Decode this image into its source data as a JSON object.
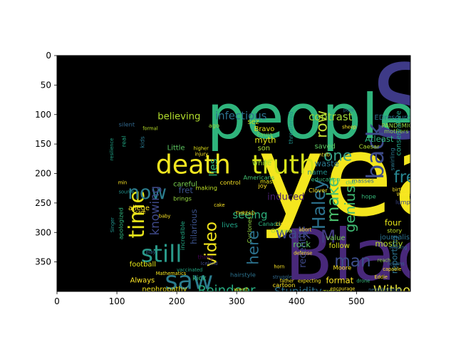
{
  "chart_data": {
    "type": "wordcloud",
    "title": "",
    "xlabel": "",
    "ylabel": "",
    "xlim": [
      0,
      590
    ],
    "ylim": [
      400,
      0
    ],
    "image_size": [
      590,
      400
    ],
    "xticks": [
      0,
      100,
      200,
      300,
      400,
      500
    ],
    "yticks": [
      0,
      50,
      100,
      150,
      200,
      250,
      300,
      350
    ],
    "background": "#000000",
    "colormap": "viridis",
    "words": [
      {
        "text": "year",
        "x": 335,
        "y": 270,
        "size": 190,
        "color": "#f4e61e",
        "rotate": 0
      },
      {
        "text": "Black",
        "x": 380,
        "y": 380,
        "size": 120,
        "color": "#48287a",
        "rotate": 0
      },
      {
        "text": "people",
        "x": 250,
        "y": 140,
        "size": 105,
        "color": "#2fb47c",
        "rotate": 0
      },
      {
        "text": "S",
        "x": 525,
        "y": 140,
        "size": 175,
        "color": "#3e3a87",
        "rotate": 0
      },
      {
        "text": "death",
        "x": 165,
        "y": 200,
        "size": 44,
        "color": "#f3e720",
        "rotate": 0
      },
      {
        "text": "truth",
        "x": 325,
        "y": 200,
        "size": 44,
        "color": "#d6e21a",
        "rotate": 0
      },
      {
        "text": "still",
        "x": 140,
        "y": 350,
        "size": 40,
        "color": "#2a9a8a",
        "rotate": 0
      },
      {
        "text": "saw",
        "x": 180,
        "y": 396,
        "size": 42,
        "color": "#2b7c8e",
        "rotate": 0
      },
      {
        "text": "time",
        "x": 145,
        "y": 310,
        "size": 36,
        "color": "#e7e419",
        "rotate": 270
      },
      {
        "text": "now",
        "x": 118,
        "y": 243,
        "size": 32,
        "color": "#2b7d8e",
        "rotate": 0
      },
      {
        "text": "back",
        "x": 545,
        "y": 210,
        "size": 40,
        "color": "#3d4b89",
        "rotate": 270
      },
      {
        "text": "one",
        "x": 445,
        "y": 178,
        "size": 26,
        "color": "#37a186",
        "rotate": 0
      },
      {
        "text": "free",
        "x": 562,
        "y": 215,
        "size": 28,
        "color": "#27858e",
        "rotate": 0
      },
      {
        "text": "row",
        "x": 450,
        "y": 140,
        "size": 26,
        "color": "#bfd932",
        "rotate": 270
      },
      {
        "text": "make",
        "x": 470,
        "y": 283,
        "size": 28,
        "color": "#4ac16d",
        "rotate": 270
      },
      {
        "text": "genius",
        "x": 497,
        "y": 300,
        "size": 24,
        "color": "#3fbc73",
        "rotate": 270
      },
      {
        "text": "Haley",
        "x": 447,
        "y": 295,
        "size": 30,
        "color": "#2c728e",
        "rotate": 270
      },
      {
        "text": "walk",
        "x": 365,
        "y": 310,
        "size": 26,
        "color": "#3f4789",
        "rotate": 0
      },
      {
        "text": "man",
        "x": 463,
        "y": 358,
        "size": 28,
        "color": "#3d4e8a",
        "rotate": 0
      },
      {
        "text": "M",
        "x": 440,
        "y": 317,
        "size": 30,
        "color": "#433d84",
        "rotate": 0
      },
      {
        "text": "video",
        "x": 266,
        "y": 358,
        "size": 28,
        "color": "#f2e51d",
        "rotate": 270
      },
      {
        "text": "Reindeer",
        "x": 235,
        "y": 406,
        "size": 22,
        "color": "#26ad81",
        "rotate": 0
      },
      {
        "text": "Without",
        "x": 528,
        "y": 406,
        "size": 22,
        "color": "#e1dd37",
        "rotate": 0
      },
      {
        "text": "Stupidity",
        "x": 363,
        "y": 406,
        "size": 18,
        "color": "#2c718e",
        "rotate": 0
      },
      {
        "text": "knowing",
        "x": 170,
        "y": 305,
        "size": 20,
        "color": "#3e4989",
        "rotate": 270
      },
      {
        "text": "seeing",
        "x": 293,
        "y": 276,
        "size": 18,
        "color": "#2db27d",
        "rotate": 0
      },
      {
        "text": "lies",
        "x": 267,
        "y": 205,
        "size": 18,
        "color": "#35b779",
        "rotate": 270
      },
      {
        "text": "infectious",
        "x": 264,
        "y": 108,
        "size": 18,
        "color": "#2c728e",
        "rotate": 0
      },
      {
        "text": "believing",
        "x": 168,
        "y": 108,
        "size": 16,
        "color": "#b2dd2d",
        "rotate": 0
      },
      {
        "text": "contrast",
        "x": 420,
        "y": 110,
        "size": 18,
        "color": "#a0da39",
        "rotate": 0
      },
      {
        "text": "induced",
        "x": 351,
        "y": 245,
        "size": 16,
        "color": "#481f70",
        "rotate": 0
      },
      {
        "text": "mass",
        "x": 339,
        "y": 217,
        "size": 10,
        "color": "#e5e419",
        "rotate": 0
      },
      {
        "text": "Americans",
        "x": 311,
        "y": 210,
        "size": 10,
        "color": "#44bf70",
        "rotate": 0
      },
      {
        "text": "waste",
        "x": 430,
        "y": 188,
        "size": 14,
        "color": "#2a788e",
        "rotate": 0
      },
      {
        "text": "name",
        "x": 418,
        "y": 202,
        "size": 12,
        "color": "#21918c",
        "rotate": 0
      },
      {
        "text": "education",
        "x": 424,
        "y": 213,
        "size": 10,
        "color": "#35b779",
        "rotate": 0
      },
      {
        "text": "saved",
        "x": 430,
        "y": 158,
        "size": 12,
        "color": "#5ec962",
        "rotate": 0
      },
      {
        "text": "threatened",
        "x": 394,
        "y": 150,
        "size": 10,
        "color": "#21918c",
        "rotate": 270
      },
      {
        "text": "Atleast",
        "x": 514,
        "y": 146,
        "size": 14,
        "color": "#2fb47c",
        "rotate": 0
      },
      {
        "text": "Caesar",
        "x": 504,
        "y": 158,
        "size": 10,
        "color": "#addc30",
        "rotate": 0
      },
      {
        "text": "EDresources",
        "x": 530,
        "y": 109,
        "size": 12,
        "color": "#2c728e",
        "rotate": 0
      },
      {
        "text": "PANDEMIC",
        "x": 542,
        "y": 122,
        "size": 10,
        "color": "#95d840",
        "rotate": 0
      },
      {
        "text": "mothers",
        "x": 546,
        "y": 132,
        "size": 10,
        "color": "#8bd646",
        "rotate": 0
      },
      {
        "text": "conservative",
        "x": 574,
        "y": 170,
        "size": 12,
        "color": "#20a386",
        "rotate": 270
      },
      {
        "text": "swirling",
        "x": 563,
        "y": 195,
        "size": 10,
        "color": "#2a788e",
        "rotate": 270
      },
      {
        "text": "myth",
        "x": 330,
        "y": 148,
        "size": 14,
        "color": "#e2e418",
        "rotate": 0
      },
      {
        "text": "son",
        "x": 335,
        "y": 161,
        "size": 12,
        "color": "#a5db36",
        "rotate": 0
      },
      {
        "text": "Bravo",
        "x": 329,
        "y": 128,
        "size": 12,
        "color": "#e5e419",
        "rotate": 0
      },
      {
        "text": "sez",
        "x": 318,
        "y": 116,
        "size": 12,
        "color": "#c2df23",
        "rotate": 0
      },
      {
        "text": "Fauja",
        "x": 334,
        "y": 137,
        "size": 10,
        "color": "#73d056",
        "rotate": 0
      },
      {
        "text": "white",
        "x": 326,
        "y": 186,
        "size": 12,
        "color": "#9bd93c",
        "rotate": 0
      },
      {
        "text": "fret",
        "x": 203,
        "y": 233,
        "size": 14,
        "color": "#3b528b",
        "rotate": 0
      },
      {
        "text": "careful",
        "x": 194,
        "y": 222,
        "size": 12,
        "color": "#7ad151",
        "rotate": 0
      },
      {
        "text": "allege",
        "x": 119,
        "y": 262,
        "size": 12,
        "color": "#fde725",
        "rotate": 0
      },
      {
        "text": "brings",
        "x": 194,
        "y": 246,
        "size": 10,
        "color": "#95d840",
        "rotate": 0
      },
      {
        "text": "making",
        "x": 231,
        "y": 228,
        "size": 10,
        "color": "#bddf26",
        "rotate": 0
      },
      {
        "text": "control",
        "x": 272,
        "y": 219,
        "size": 10,
        "color": "#fde725",
        "rotate": 0
      },
      {
        "text": "hilarious",
        "x": 233,
        "y": 320,
        "size": 14,
        "color": "#3b528b",
        "rotate": 270
      },
      {
        "text": "incredible",
        "x": 213,
        "y": 330,
        "size": 10,
        "color": "#22a884",
        "rotate": 270
      },
      {
        "text": "lives",
        "x": 275,
        "y": 291,
        "size": 12,
        "color": "#20a386",
        "rotate": 0
      },
      {
        "text": "Canada",
        "x": 336,
        "y": 289,
        "size": 10,
        "color": "#2db27d",
        "rotate": 0
      },
      {
        "text": "Ottawa",
        "x": 357,
        "y": 300,
        "size": 10,
        "color": "#a0da39",
        "rotate": 0
      },
      {
        "text": "circle",
        "x": 365,
        "y": 289,
        "size": 10,
        "color": "#fde725",
        "rotate": 0
      },
      {
        "text": "Cyclones",
        "x": 325,
        "y": 318,
        "size": 10,
        "color": "#95d840",
        "rotate": 270
      },
      {
        "text": "rock",
        "x": 394,
        "y": 325,
        "size": 14,
        "color": "#5ec962",
        "rotate": 0
      },
      {
        "text": "follow",
        "x": 454,
        "y": 326,
        "size": 12,
        "color": "#d8e219",
        "rotate": 0
      },
      {
        "text": "value",
        "x": 449,
        "y": 313,
        "size": 12,
        "color": "#7ad151",
        "rotate": 0
      },
      {
        "text": "mostly",
        "x": 531,
        "y": 324,
        "size": 14,
        "color": "#b8de29",
        "rotate": 0
      },
      {
        "text": "journalist",
        "x": 539,
        "y": 312,
        "size": 12,
        "color": "#2c728e",
        "rotate": 0
      },
      {
        "text": "four",
        "x": 547,
        "y": 288,
        "size": 14,
        "color": "#e5e419",
        "rotate": 0
      },
      {
        "text": "story",
        "x": 551,
        "y": 300,
        "size": 10,
        "color": "#bddf26",
        "rotate": 0
      },
      {
        "text": "hope",
        "x": 508,
        "y": 242,
        "size": 10,
        "color": "#35b779",
        "rotate": 0
      },
      {
        "text": "Moore",
        "x": 461,
        "y": 363,
        "size": 10,
        "color": "#fde725",
        "rotate": 0
      },
      {
        "text": "format",
        "x": 449,
        "y": 386,
        "size": 14,
        "color": "#fde725",
        "rotate": 0
      },
      {
        "text": "recently",
        "x": 415,
        "y": 360,
        "size": 16,
        "color": "#3e4989",
        "rotate": 270
      },
      {
        "text": "reporting",
        "x": 568,
        "y": 370,
        "size": 14,
        "color": "#2c728e",
        "rotate": 270
      },
      {
        "text": "here",
        "x": 336,
        "y": 355,
        "size": 26,
        "color": "#2c728e",
        "rotate": 270
      },
      {
        "text": "Always",
        "x": 122,
        "y": 385,
        "size": 12,
        "color": "#fde725",
        "rotate": 0
      },
      {
        "text": "nephropathy",
        "x": 142,
        "y": 400,
        "size": 12,
        "color": "#f1e51d",
        "rotate": 0
      },
      {
        "text": "football",
        "x": 121,
        "y": 358,
        "size": 12,
        "color": "#e2e418",
        "rotate": 0
      },
      {
        "text": "Mathematics",
        "x": 165,
        "y": 372,
        "size": 8,
        "color": "#f6e620",
        "rotate": 0
      },
      {
        "text": "kick",
        "x": 226,
        "y": 381,
        "size": 12,
        "color": "#35b779",
        "rotate": 0
      },
      {
        "text": "hairstyle",
        "x": 289,
        "y": 375,
        "size": 10,
        "color": "#2c728e",
        "rotate": 0
      },
      {
        "text": "went",
        "x": 295,
        "y": 400,
        "size": 10,
        "color": "#e5e419",
        "rotate": 0
      },
      {
        "text": "TIRED",
        "x": 444,
        "y": 405,
        "size": 10,
        "color": "#bddf26",
        "rotate": 0
      },
      {
        "text": "apologized",
        "x": 110,
        "y": 312,
        "size": 10,
        "color": "#2fb47c",
        "rotate": 270
      },
      {
        "text": "Little",
        "x": 184,
        "y": 160,
        "size": 12,
        "color": "#5ec962",
        "rotate": 0
      },
      {
        "text": "kids",
        "x": 146,
        "y": 157,
        "size": 10,
        "color": "#2a788e",
        "rotate": 270
      },
      {
        "text": "formal",
        "x": 143,
        "y": 126,
        "size": 8,
        "color": "#b8de29",
        "rotate": 0
      },
      {
        "text": "silent",
        "x": 103,
        "y": 120,
        "size": 10,
        "color": "#31688e",
        "rotate": 0
      },
      {
        "text": "real",
        "x": 115,
        "y": 155,
        "size": 10,
        "color": "#22a884",
        "rotate": 270
      },
      {
        "text": "source",
        "x": 103,
        "y": 234,
        "size": 8,
        "color": "#21918c",
        "rotate": 0
      },
      {
        "text": "joy",
        "x": 336,
        "y": 224,
        "size": 10,
        "color": "#fde725",
        "rotate": 0
      },
      {
        "text": "Clover",
        "x": 420,
        "y": 232,
        "size": 10,
        "color": "#fde725",
        "rotate": 0
      },
      {
        "text": "masses",
        "x": 492,
        "y": 216,
        "size": 10,
        "color": "#31688e",
        "rotate": 0
      },
      {
        "text": "lump",
        "x": 565,
        "y": 252,
        "size": 10,
        "color": "#3e4989",
        "rotate": 0
      },
      {
        "text": "Weeks",
        "x": 567,
        "y": 238,
        "size": 8,
        "color": "#fde725",
        "rotate": 0
      },
      {
        "text": "club",
        "x": 482,
        "y": 218,
        "size": 8,
        "color": "#35b779",
        "rotate": 0
      },
      {
        "text": "defense",
        "x": 395,
        "y": 338,
        "size": 8,
        "color": "#fde725",
        "rotate": 0
      },
      {
        "text": "Singer",
        "x": 95,
        "y": 300,
        "size": 8,
        "color": "#21918c",
        "rotate": 270
      },
      {
        "text": "resilience",
        "x": 94,
        "y": 178,
        "size": 8,
        "color": "#20a386",
        "rotate": 270
      },
      {
        "text": "Iceland",
        "x": 240,
        "y": 355,
        "size": 8,
        "color": "#3e4989",
        "rotate": 0
      },
      {
        "text": "struggle",
        "x": 360,
        "y": 378,
        "size": 8,
        "color": "#31688e",
        "rotate": 0
      },
      {
        "text": "vaccinated",
        "x": 200,
        "y": 366,
        "size": 8,
        "color": "#22a884",
        "rotate": 0
      },
      {
        "text": "pure",
        "x": 478,
        "y": 95,
        "size": 8,
        "color": "#31688e",
        "rotate": 0
      },
      {
        "text": "thing",
        "x": 235,
        "y": 345,
        "size": 10,
        "color": "#440154",
        "rotate": 0
      },
      {
        "text": "min",
        "x": 102,
        "y": 218,
        "size": 8,
        "color": "#fde725",
        "rotate": 0
      },
      {
        "text": "contrib",
        "x": 428,
        "y": 171,
        "size": 8,
        "color": "#fde725",
        "rotate": 0
      },
      {
        "text": "Eddie",
        "x": 530,
        "y": 378,
        "size": 8,
        "color": "#fde725",
        "rotate": 0
      },
      {
        "text": "drone",
        "x": 500,
        "y": 385,
        "size": 8,
        "color": "#35b779",
        "rotate": 0
      },
      {
        "text": "cartoon",
        "x": 360,
        "y": 393,
        "size": 10,
        "color": "#fde725",
        "rotate": 0
      },
      {
        "text": "reach",
        "x": 535,
        "y": 350,
        "size": 8,
        "color": "#8bd646",
        "rotate": 0
      },
      {
        "text": "capable",
        "x": 544,
        "y": 365,
        "size": 8,
        "color": "#fde725",
        "rotate": 0
      },
      {
        "text": "returns",
        "x": 552,
        "y": 356,
        "size": 8,
        "color": "#31688e",
        "rotate": 0
      },
      {
        "text": "higher",
        "x": 228,
        "y": 160,
        "size": 8,
        "color": "#e5e419",
        "rotate": 0
      },
      {
        "text": "injury",
        "x": 230,
        "y": 170,
        "size": 8,
        "color": "#fde725",
        "rotate": 0
      },
      {
        "text": "cake",
        "x": 262,
        "y": 256,
        "size": 8,
        "color": "#fde725",
        "rotate": 0
      },
      {
        "text": "baby",
        "x": 170,
        "y": 275,
        "size": 8,
        "color": "#fde725",
        "rotate": 0
      },
      {
        "text": "play",
        "x": 148,
        "y": 336,
        "size": 8,
        "color": "#31688e",
        "rotate": 0
      },
      {
        "text": "father",
        "x": 372,
        "y": 385,
        "size": 8,
        "color": "#fde725",
        "rotate": 0
      },
      {
        "text": "ago",
        "x": 253,
        "y": 122,
        "size": 10,
        "color": "#95d840",
        "rotate": 0
      },
      {
        "text": "Scare",
        "x": 126,
        "y": 268,
        "size": 8,
        "color": "#fde725",
        "rotate": 0
      },
      {
        "text": "THREAD",
        "x": 298,
        "y": 270,
        "size": 8,
        "color": "#fde725",
        "rotate": 0
      },
      {
        "text": "abort",
        "x": 404,
        "y": 298,
        "size": 8,
        "color": "#fde725",
        "rotate": 0
      },
      {
        "text": "horn",
        "x": 362,
        "y": 361,
        "size": 8,
        "color": "#fde725",
        "rotate": 0
      },
      {
        "text": "neighborhood",
        "x": 520,
        "y": 400,
        "size": 8,
        "color": "#31688e",
        "rotate": 0
      },
      {
        "text": "expecting",
        "x": 402,
        "y": 385,
        "size": 8,
        "color": "#fde725",
        "rotate": 0
      },
      {
        "text": "encourage",
        "x": 456,
        "y": 398,
        "size": 8,
        "color": "#fde725",
        "rotate": 0
      },
      {
        "text": "sheep",
        "x": 476,
        "y": 124,
        "size": 8,
        "color": "#fde725",
        "rotate": 0
      },
      {
        "text": "birthday",
        "x": 560,
        "y": 230,
        "size": 8,
        "color": "#fde725",
        "rotate": 0
      },
      {
        "text": "reading",
        "x": 555,
        "y": 328,
        "size": 8,
        "color": "#31688e",
        "rotate": 0
      }
    ]
  }
}
